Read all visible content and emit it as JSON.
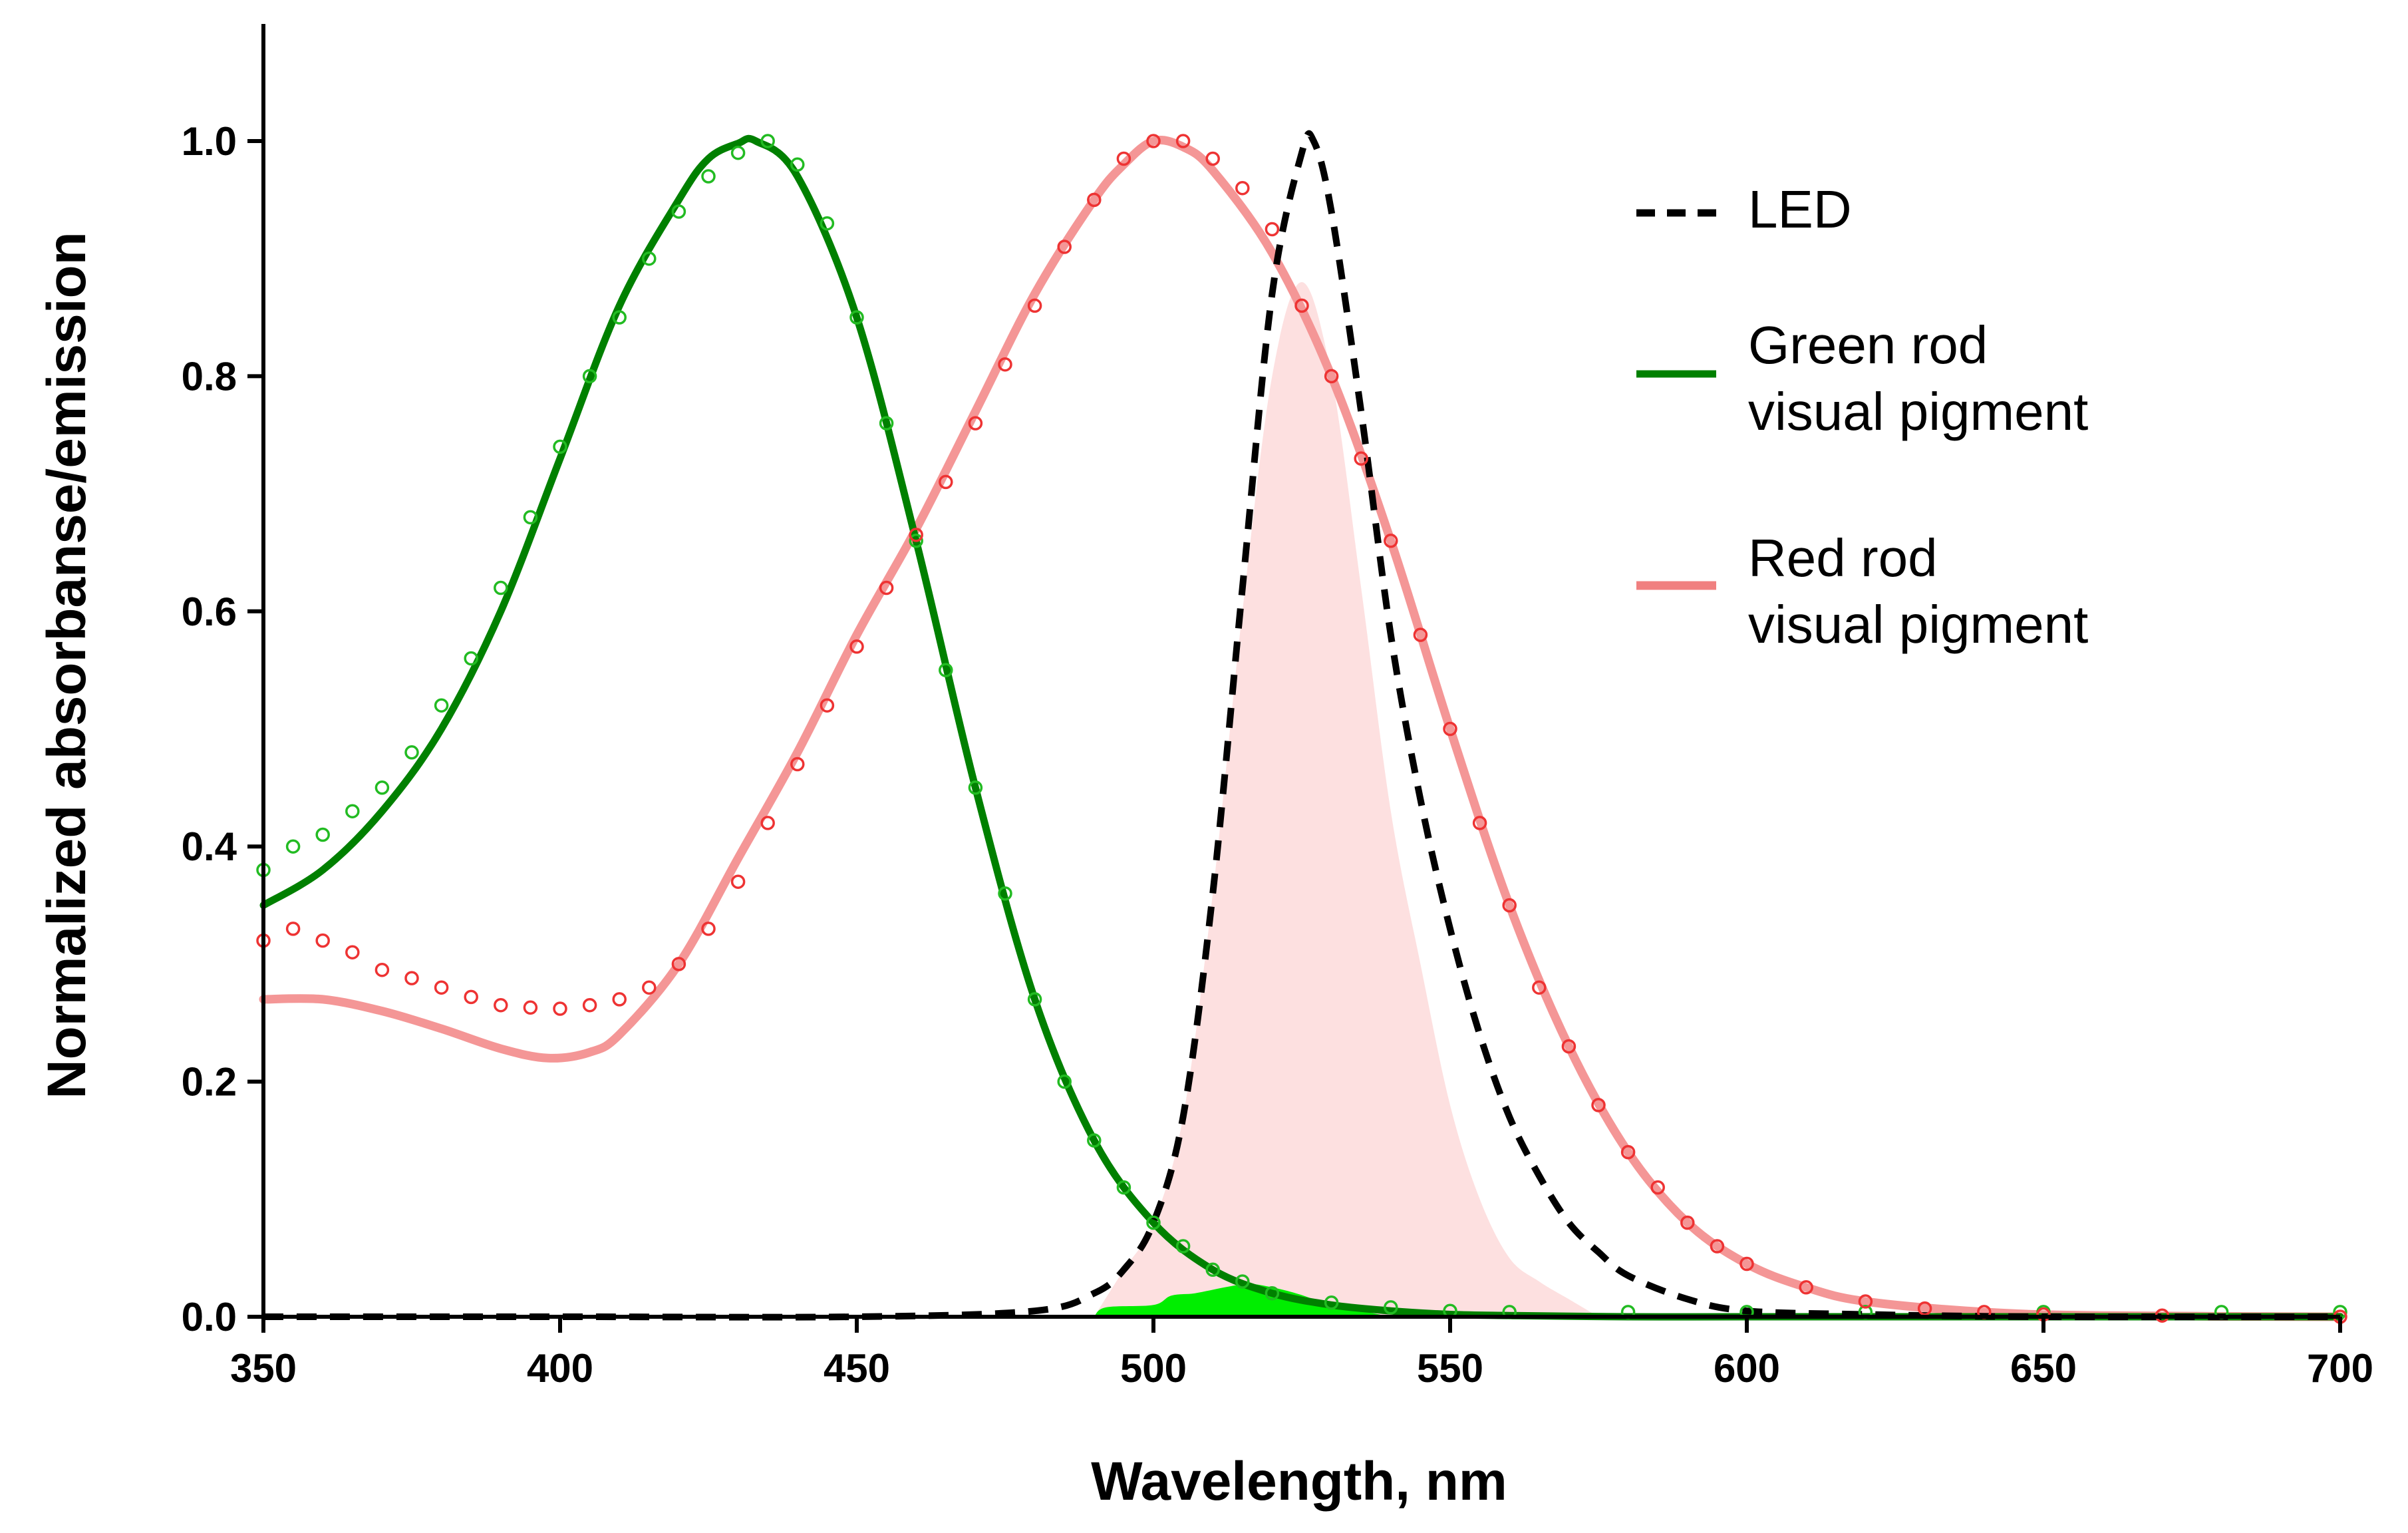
{
  "chart_data": {
    "type": "line",
    "title": "",
    "xlabel": "Wavelength, nm",
    "ylabel": "Normalized absorbanse/emission",
    "xlim": [
      350,
      700
    ],
    "ylim": [
      0,
      1.1
    ],
    "xticks": [
      350,
      400,
      450,
      500,
      550,
      600,
      650,
      700
    ],
    "xtick_labels": [
      "350",
      "400",
      "450",
      "500",
      "550",
      "600",
      "650",
      "700"
    ],
    "yticks": [
      0.0,
      0.2,
      0.4,
      0.6,
      0.8,
      1.0
    ],
    "ytick_labels": [
      "0.0",
      "0.2",
      "0.4",
      "0.6",
      "0.8",
      "1.0"
    ],
    "grid": false,
    "legend_position": "top-right",
    "legend": [
      {
        "key": "led",
        "lines": [
          "LED"
        ],
        "color": "#000000",
        "style": "dashed"
      },
      {
        "key": "green",
        "lines": [
          "Green rod",
          "visual pigment"
        ],
        "color": "#008000",
        "style": "solid"
      },
      {
        "key": "red",
        "lines": [
          "Red rod",
          "visual pigment"
        ],
        "color": "#f08080",
        "style": "solid-light"
      }
    ],
    "series": [
      {
        "name": "LED",
        "kind": "dashed-line",
        "color": "#000000",
        "x": [
          350,
          400,
          450,
          480,
          490,
          495,
          500,
          505,
          510,
          515,
          520,
          525,
          527,
          530,
          535,
          540,
          545,
          550,
          555,
          560,
          565,
          570,
          575,
          580,
          590,
          600,
          620,
          650,
          700
        ],
        "y": [
          0,
          0,
          0,
          0.005,
          0.02,
          0.04,
          0.08,
          0.17,
          0.36,
          0.62,
          0.87,
          0.99,
          1.0,
          0.94,
          0.77,
          0.58,
          0.44,
          0.33,
          0.24,
          0.17,
          0.12,
          0.08,
          0.055,
          0.035,
          0.015,
          0.005,
          0.002,
          0,
          0
        ]
      },
      {
        "name": "Green rod visual pigment (fit)",
        "kind": "solid-line",
        "color": "#008000",
        "x": [
          350,
          360,
          370,
          380,
          390,
          400,
          410,
          420,
          425,
          430,
          433,
          440,
          450,
          460,
          470,
          480,
          490,
          500,
          510,
          520,
          530,
          540,
          550,
          560,
          580,
          600,
          650,
          700
        ],
        "y": [
          0.35,
          0.38,
          0.43,
          0.5,
          0.6,
          0.73,
          0.86,
          0.95,
          0.985,
          0.998,
          1.0,
          0.97,
          0.85,
          0.66,
          0.45,
          0.27,
          0.15,
          0.08,
          0.04,
          0.02,
          0.01,
          0.005,
          0.002,
          0.001,
          0,
          0,
          0,
          0
        ]
      },
      {
        "name": "Green rod visual pigment (data)",
        "kind": "open-circles",
        "color": "#22bb22",
        "x": [
          350,
          355,
          360,
          365,
          370,
          375,
          380,
          385,
          390,
          395,
          400,
          405,
          410,
          415,
          420,
          425,
          430,
          435,
          440,
          445,
          450,
          455,
          460,
          465,
          470,
          475,
          480,
          485,
          490,
          495,
          500,
          505,
          510,
          515,
          520,
          530,
          540,
          550,
          560,
          580,
          600,
          620,
          650,
          680,
          700
        ],
        "y": [
          0.38,
          0.4,
          0.41,
          0.43,
          0.45,
          0.48,
          0.52,
          0.56,
          0.62,
          0.68,
          0.74,
          0.8,
          0.85,
          0.9,
          0.94,
          0.97,
          0.99,
          1.0,
          0.98,
          0.93,
          0.85,
          0.76,
          0.66,
          0.55,
          0.45,
          0.36,
          0.27,
          0.2,
          0.15,
          0.11,
          0.08,
          0.06,
          0.04,
          0.03,
          0.02,
          0.012,
          0.008,
          0.005,
          0.004,
          0.004,
          0.004,
          0.004,
          0.004,
          0.004,
          0.004
        ]
      },
      {
        "name": "Red rod visual pigment (fit)",
        "kind": "light-line",
        "color": "#f49696",
        "x": [
          350,
          360,
          370,
          380,
          390,
          398,
          405,
          410,
          420,
          430,
          440,
          450,
          460,
          470,
          480,
          490,
          495,
          500,
          505,
          510,
          520,
          530,
          540,
          550,
          560,
          570,
          580,
          590,
          600,
          610,
          620,
          640,
          660,
          700
        ],
        "y": [
          0.27,
          0.27,
          0.26,
          0.245,
          0.228,
          0.22,
          0.225,
          0.24,
          0.3,
          0.39,
          0.48,
          0.58,
          0.67,
          0.77,
          0.87,
          0.95,
          0.98,
          1.0,
          0.995,
          0.975,
          0.905,
          0.8,
          0.66,
          0.5,
          0.35,
          0.23,
          0.14,
          0.08,
          0.045,
          0.025,
          0.013,
          0.004,
          0.001,
          0
        ]
      },
      {
        "name": "Red rod visual pigment (data)",
        "kind": "open-circles",
        "color": "#ee3333",
        "x": [
          350,
          355,
          360,
          365,
          370,
          375,
          380,
          385,
          390,
          395,
          400,
          405,
          410,
          415,
          420,
          425,
          430,
          435,
          440,
          445,
          450,
          455,
          460,
          465,
          470,
          475,
          480,
          485,
          490,
          495,
          500,
          505,
          510,
          515,
          520,
          525,
          530,
          535,
          540,
          545,
          550,
          555,
          560,
          565,
          570,
          575,
          580,
          585,
          590,
          595,
          600,
          610,
          620,
          630,
          640,
          650,
          670,
          700
        ],
        "y": [
          0.32,
          0.33,
          0.32,
          0.31,
          0.295,
          0.288,
          0.28,
          0.272,
          0.265,
          0.263,
          0.262,
          0.265,
          0.27,
          0.28,
          0.3,
          0.33,
          0.37,
          0.42,
          0.47,
          0.52,
          0.57,
          0.62,
          0.665,
          0.71,
          0.76,
          0.81,
          0.86,
          0.91,
          0.95,
          0.985,
          1.0,
          1.0,
          0.985,
          0.96,
          0.925,
          0.86,
          0.8,
          0.73,
          0.66,
          0.58,
          0.5,
          0.42,
          0.35,
          0.28,
          0.23,
          0.18,
          0.14,
          0.11,
          0.08,
          0.06,
          0.045,
          0.025,
          0.013,
          0.007,
          0.004,
          0.002,
          0.001,
          0
        ]
      },
      {
        "name": "Overlap area (LED × red pigment)",
        "kind": "filled-area",
        "color": "#fde0e0",
        "x": [
          490,
          495,
          500,
          505,
          510,
          515,
          520,
          525,
          530,
          535,
          540,
          545,
          550,
          555,
          560,
          565,
          570,
          575
        ],
        "y": [
          0,
          0.04,
          0.08,
          0.17,
          0.36,
          0.6,
          0.8,
          0.88,
          0.8,
          0.62,
          0.43,
          0.3,
          0.18,
          0.1,
          0.05,
          0.03,
          0.015,
          0
        ]
      },
      {
        "name": "Overlap area (LED × green pigment)",
        "kind": "filled-area",
        "color": "#00ee00",
        "x": [
          490,
          492,
          500,
          503,
          507,
          512,
          516,
          520,
          524,
          527,
          530,
          535,
          540
        ],
        "y": [
          0,
          0.008,
          0.01,
          0.018,
          0.02,
          0.025,
          0.028,
          0.025,
          0.02,
          0.015,
          0.01,
          0.005,
          0
        ]
      }
    ]
  }
}
